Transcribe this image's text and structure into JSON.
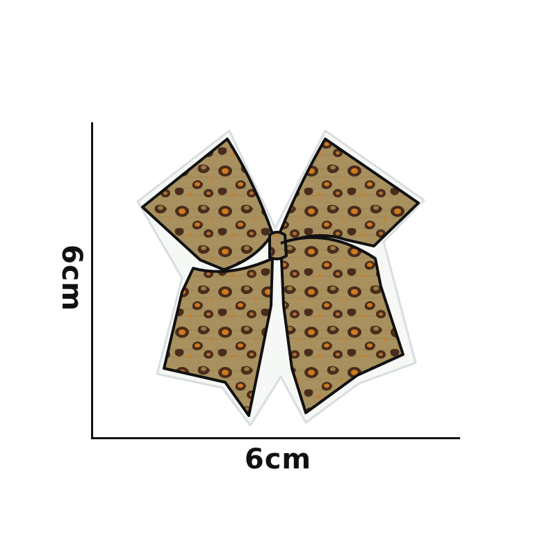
{
  "dimensions": {
    "width_label": "6cm",
    "height_label": "6cm"
  },
  "patch": {
    "subject": "leopard-print-bow-patch",
    "colors": {
      "base": "#a8915f",
      "spot_dark": "#4a2c1c",
      "spot_orange": "#cf7a1e",
      "outline": "#111111",
      "edge": "#f6f8f6"
    }
  }
}
